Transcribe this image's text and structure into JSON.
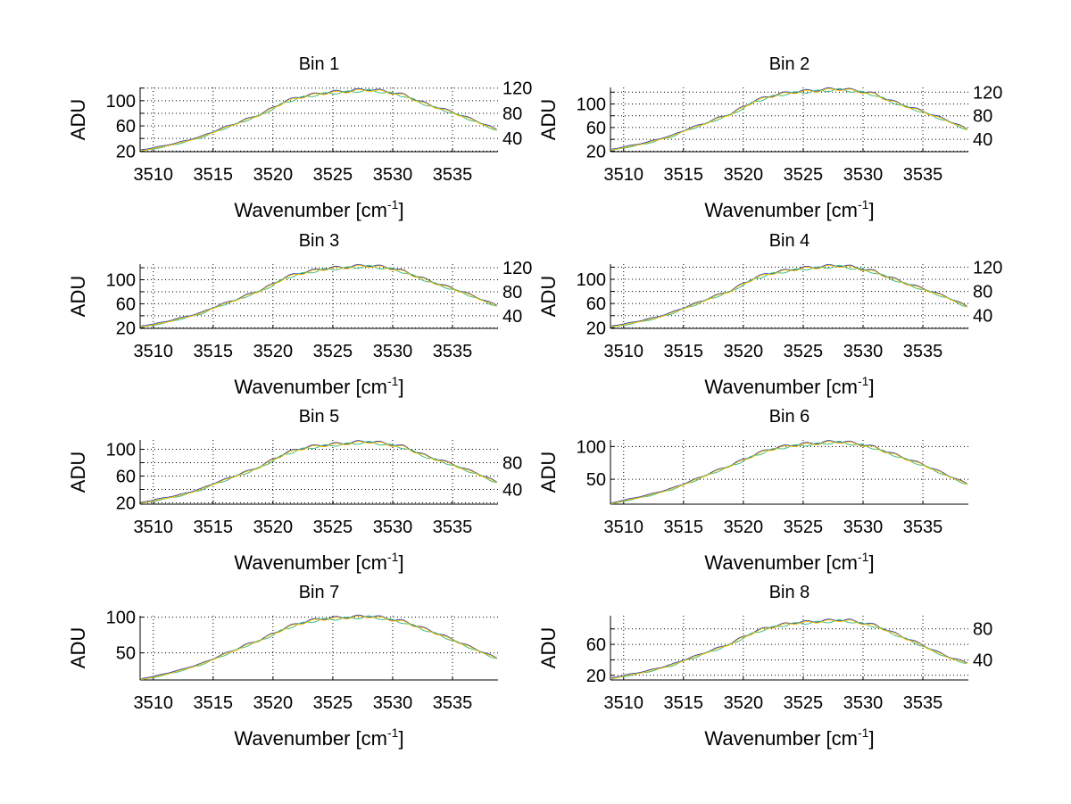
{
  "chart_data": [
    {
      "type": "line",
      "title": "Bin 1",
      "xlabel": "Wavenumber [cm",
      "xlabel_sup": "-1",
      "xlabel_close": "]",
      "ylabel": "ADU",
      "xlim": [
        3508.9,
        3538.8
      ],
      "ylim": [
        19,
        121
      ],
      "xticks": [
        3510,
        3515,
        3520,
        3525,
        3530,
        3535
      ],
      "yticks": [
        20,
        40,
        60,
        80,
        100,
        120
      ],
      "grid": true,
      "x": [
        3509,
        3510,
        3511,
        3512,
        3513,
        3514,
        3515,
        3516,
        3517,
        3518,
        3519,
        3520,
        3521,
        3522,
        3523,
        3524,
        3525,
        3526,
        3527,
        3528,
        3529,
        3530,
        3531,
        3532,
        3533,
        3534,
        3535,
        3536,
        3537,
        3538
      ],
      "values": [
        21,
        24,
        28,
        32,
        37,
        42,
        50,
        57,
        64,
        71,
        78,
        88,
        98,
        104,
        108,
        111,
        113,
        114,
        116,
        117,
        115,
        112,
        108,
        100,
        93,
        87,
        81,
        74,
        67,
        59
      ]
    },
    {
      "type": "line",
      "title": "Bin 2",
      "xlabel": "Wavenumber [cm",
      "xlabel_sup": "-1",
      "xlabel_close": "]",
      "ylabel": "ADU",
      "xlim": [
        3508.9,
        3538.8
      ],
      "ylim": [
        19,
        128
      ],
      "xticks": [
        3510,
        3515,
        3520,
        3525,
        3530,
        3535
      ],
      "yticks": [
        20,
        40,
        60,
        80,
        100,
        120
      ],
      "grid": true,
      "x": [
        3509,
        3510,
        3511,
        3512,
        3513,
        3514,
        3515,
        3516,
        3517,
        3518,
        3519,
        3520,
        3521,
        3522,
        3523,
        3524,
        3525,
        3526,
        3527,
        3528,
        3529,
        3530,
        3531,
        3532,
        3533,
        3534,
        3535,
        3536,
        3537,
        3538
      ],
      "values": [
        22,
        26,
        30,
        34,
        40,
        45,
        54,
        61,
        68,
        76,
        83,
        94,
        105,
        111,
        116,
        119,
        121,
        122,
        124,
        125,
        123,
        120,
        116,
        107,
        100,
        93,
        87,
        79,
        72,
        63
      ]
    },
    {
      "type": "line",
      "title": "Bin 3",
      "xlabel": "Wavenumber [cm",
      "xlabel_sup": "-1",
      "xlabel_close": "]",
      "ylabel": "ADU",
      "xlim": [
        3508.9,
        3538.8
      ],
      "ylim": [
        19,
        126
      ],
      "xticks": [
        3510,
        3515,
        3520,
        3525,
        3530,
        3535
      ],
      "yticks": [
        20,
        40,
        60,
        80,
        100,
        120
      ],
      "grid": true,
      "x": [
        3509,
        3510,
        3511,
        3512,
        3513,
        3514,
        3515,
        3516,
        3517,
        3518,
        3519,
        3520,
        3521,
        3522,
        3523,
        3524,
        3525,
        3526,
        3527,
        3528,
        3529,
        3530,
        3531,
        3532,
        3533,
        3534,
        3535,
        3536,
        3537,
        3538
      ],
      "values": [
        22,
        25,
        29,
        34,
        39,
        44,
        53,
        60,
        67,
        75,
        82,
        92,
        103,
        109,
        113,
        117,
        119,
        120,
        122,
        123,
        121,
        118,
        113,
        105,
        98,
        91,
        85,
        78,
        70,
        62
      ]
    },
    {
      "type": "line",
      "title": "Bin 4",
      "xlabel": "Wavenumber [cm",
      "xlabel_sup": "-1",
      "xlabel_close": "]",
      "ylabel": "ADU",
      "xlim": [
        3508.9,
        3538.8
      ],
      "ylim": [
        19,
        125
      ],
      "xticks": [
        3510,
        3515,
        3520,
        3525,
        3530,
        3535
      ],
      "yticks": [
        20,
        40,
        60,
        80,
        100,
        120
      ],
      "grid": true,
      "x": [
        3509,
        3510,
        3511,
        3512,
        3513,
        3514,
        3515,
        3516,
        3517,
        3518,
        3519,
        3520,
        3521,
        3522,
        3523,
        3524,
        3525,
        3526,
        3527,
        3528,
        3529,
        3530,
        3531,
        3532,
        3533,
        3534,
        3535,
        3536,
        3537,
        3538
      ],
      "values": [
        22,
        25,
        29,
        33,
        38,
        44,
        52,
        59,
        67,
        74,
        81,
        92,
        102,
        108,
        112,
        115,
        118,
        119,
        121,
        122,
        120,
        116,
        112,
        104,
        97,
        90,
        84,
        77,
        70,
        61
      ]
    },
    {
      "type": "line",
      "title": "Bin 5",
      "xlabel": "Wavenumber [cm",
      "xlabel_sup": "-1",
      "xlabel_close": "]",
      "ylabel": "ADU",
      "xlim": [
        3508.9,
        3538.8
      ],
      "ylim": [
        18,
        114
      ],
      "xticks": [
        3510,
        3515,
        3520,
        3525,
        3530,
        3535
      ],
      "yticks": [
        20,
        40,
        60,
        80,
        100
      ],
      "grid": true,
      "x": [
        3509,
        3510,
        3511,
        3512,
        3513,
        3514,
        3515,
        3516,
        3517,
        3518,
        3519,
        3520,
        3521,
        3522,
        3523,
        3524,
        3525,
        3526,
        3527,
        3528,
        3529,
        3530,
        3531,
        3532,
        3533,
        3534,
        3535,
        3536,
        3537,
        3538
      ],
      "values": [
        20,
        23,
        27,
        30,
        35,
        40,
        48,
        54,
        61,
        67,
        74,
        84,
        93,
        99,
        103,
        105,
        107,
        108,
        110,
        111,
        109,
        106,
        103,
        95,
        88,
        83,
        77,
        70,
        64,
        56
      ]
    },
    {
      "type": "line",
      "title": "Bin 6",
      "xlabel": "Wavenumber [cm",
      "xlabel_sup": "-1",
      "xlabel_close": "]",
      "ylabel": "ADU",
      "xlim": [
        3508.9,
        3538.8
      ],
      "ylim": [
        12,
        110
      ],
      "xticks": [
        3510,
        3515,
        3520,
        3525,
        3530,
        3535
      ],
      "yticks": [
        50,
        100
      ],
      "grid": true,
      "x": [
        3509,
        3510,
        3511,
        3512,
        3513,
        3514,
        3515,
        3516,
        3517,
        3518,
        3519,
        3520,
        3521,
        3522,
        3523,
        3524,
        3525,
        3526,
        3527,
        3528,
        3529,
        3530,
        3531,
        3532,
        3533,
        3534,
        3535,
        3536,
        3537,
        3538
      ],
      "values": [
        13,
        17,
        21,
        25,
        30,
        35,
        42,
        49,
        57,
        64,
        71,
        79,
        87,
        94,
        98,
        101,
        103,
        104,
        106,
        107,
        105,
        102,
        98,
        91,
        85,
        78,
        72,
        64,
        56,
        48
      ]
    },
    {
      "type": "line",
      "title": "Bin 7",
      "xlabel": "Wavenumber [cm",
      "xlabel_sup": "-1",
      "xlabel_close": "]",
      "ylabel": "ADU",
      "xlim": [
        3508.9,
        3538.8
      ],
      "ylim": [
        12,
        102
      ],
      "xticks": [
        3510,
        3515,
        3520,
        3525,
        3530,
        3535
      ],
      "yticks": [
        50,
        100
      ],
      "grid": true,
      "x": [
        3509,
        3510,
        3511,
        3512,
        3513,
        3514,
        3515,
        3516,
        3517,
        3518,
        3519,
        3520,
        3521,
        3522,
        3523,
        3524,
        3525,
        3526,
        3527,
        3528,
        3529,
        3530,
        3531,
        3532,
        3533,
        3534,
        3535,
        3536,
        3537,
        3538
      ],
      "values": [
        13,
        16,
        20,
        24,
        29,
        34,
        41,
        48,
        55,
        62,
        68,
        76,
        84,
        90,
        94,
        97,
        98,
        99,
        100,
        101,
        99,
        96,
        93,
        87,
        81,
        75,
        68,
        61,
        54,
        47
      ]
    },
    {
      "type": "line",
      "title": "Bin 8",
      "xlabel": "Wavenumber [cm",
      "xlabel_sup": "-1",
      "xlabel_close": "]",
      "ylabel": "ADU",
      "xlim": [
        3508.9,
        3538.8
      ],
      "ylim": [
        14,
        97
      ],
      "xticks": [
        3510,
        3515,
        3520,
        3525,
        3530,
        3535
      ],
      "yticks": [
        20,
        40,
        60,
        80
      ],
      "grid": true,
      "x": [
        3509,
        3510,
        3511,
        3512,
        3513,
        3514,
        3515,
        3516,
        3517,
        3518,
        3519,
        3520,
        3521,
        3522,
        3523,
        3524,
        3525,
        3526,
        3527,
        3528,
        3529,
        3530,
        3531,
        3532,
        3533,
        3534,
        3535,
        3536,
        3537,
        3538
      ],
      "values": [
        16,
        19,
        22,
        25,
        29,
        33,
        39,
        44,
        50,
        55,
        61,
        69,
        76,
        81,
        84,
        87,
        88,
        89,
        90,
        91,
        90,
        87,
        84,
        78,
        71,
        65,
        58,
        51,
        44,
        39
      ]
    }
  ],
  "series_colors": [
    "#1f3fbf",
    "#3fbf7f",
    "#ffbf00"
  ]
}
